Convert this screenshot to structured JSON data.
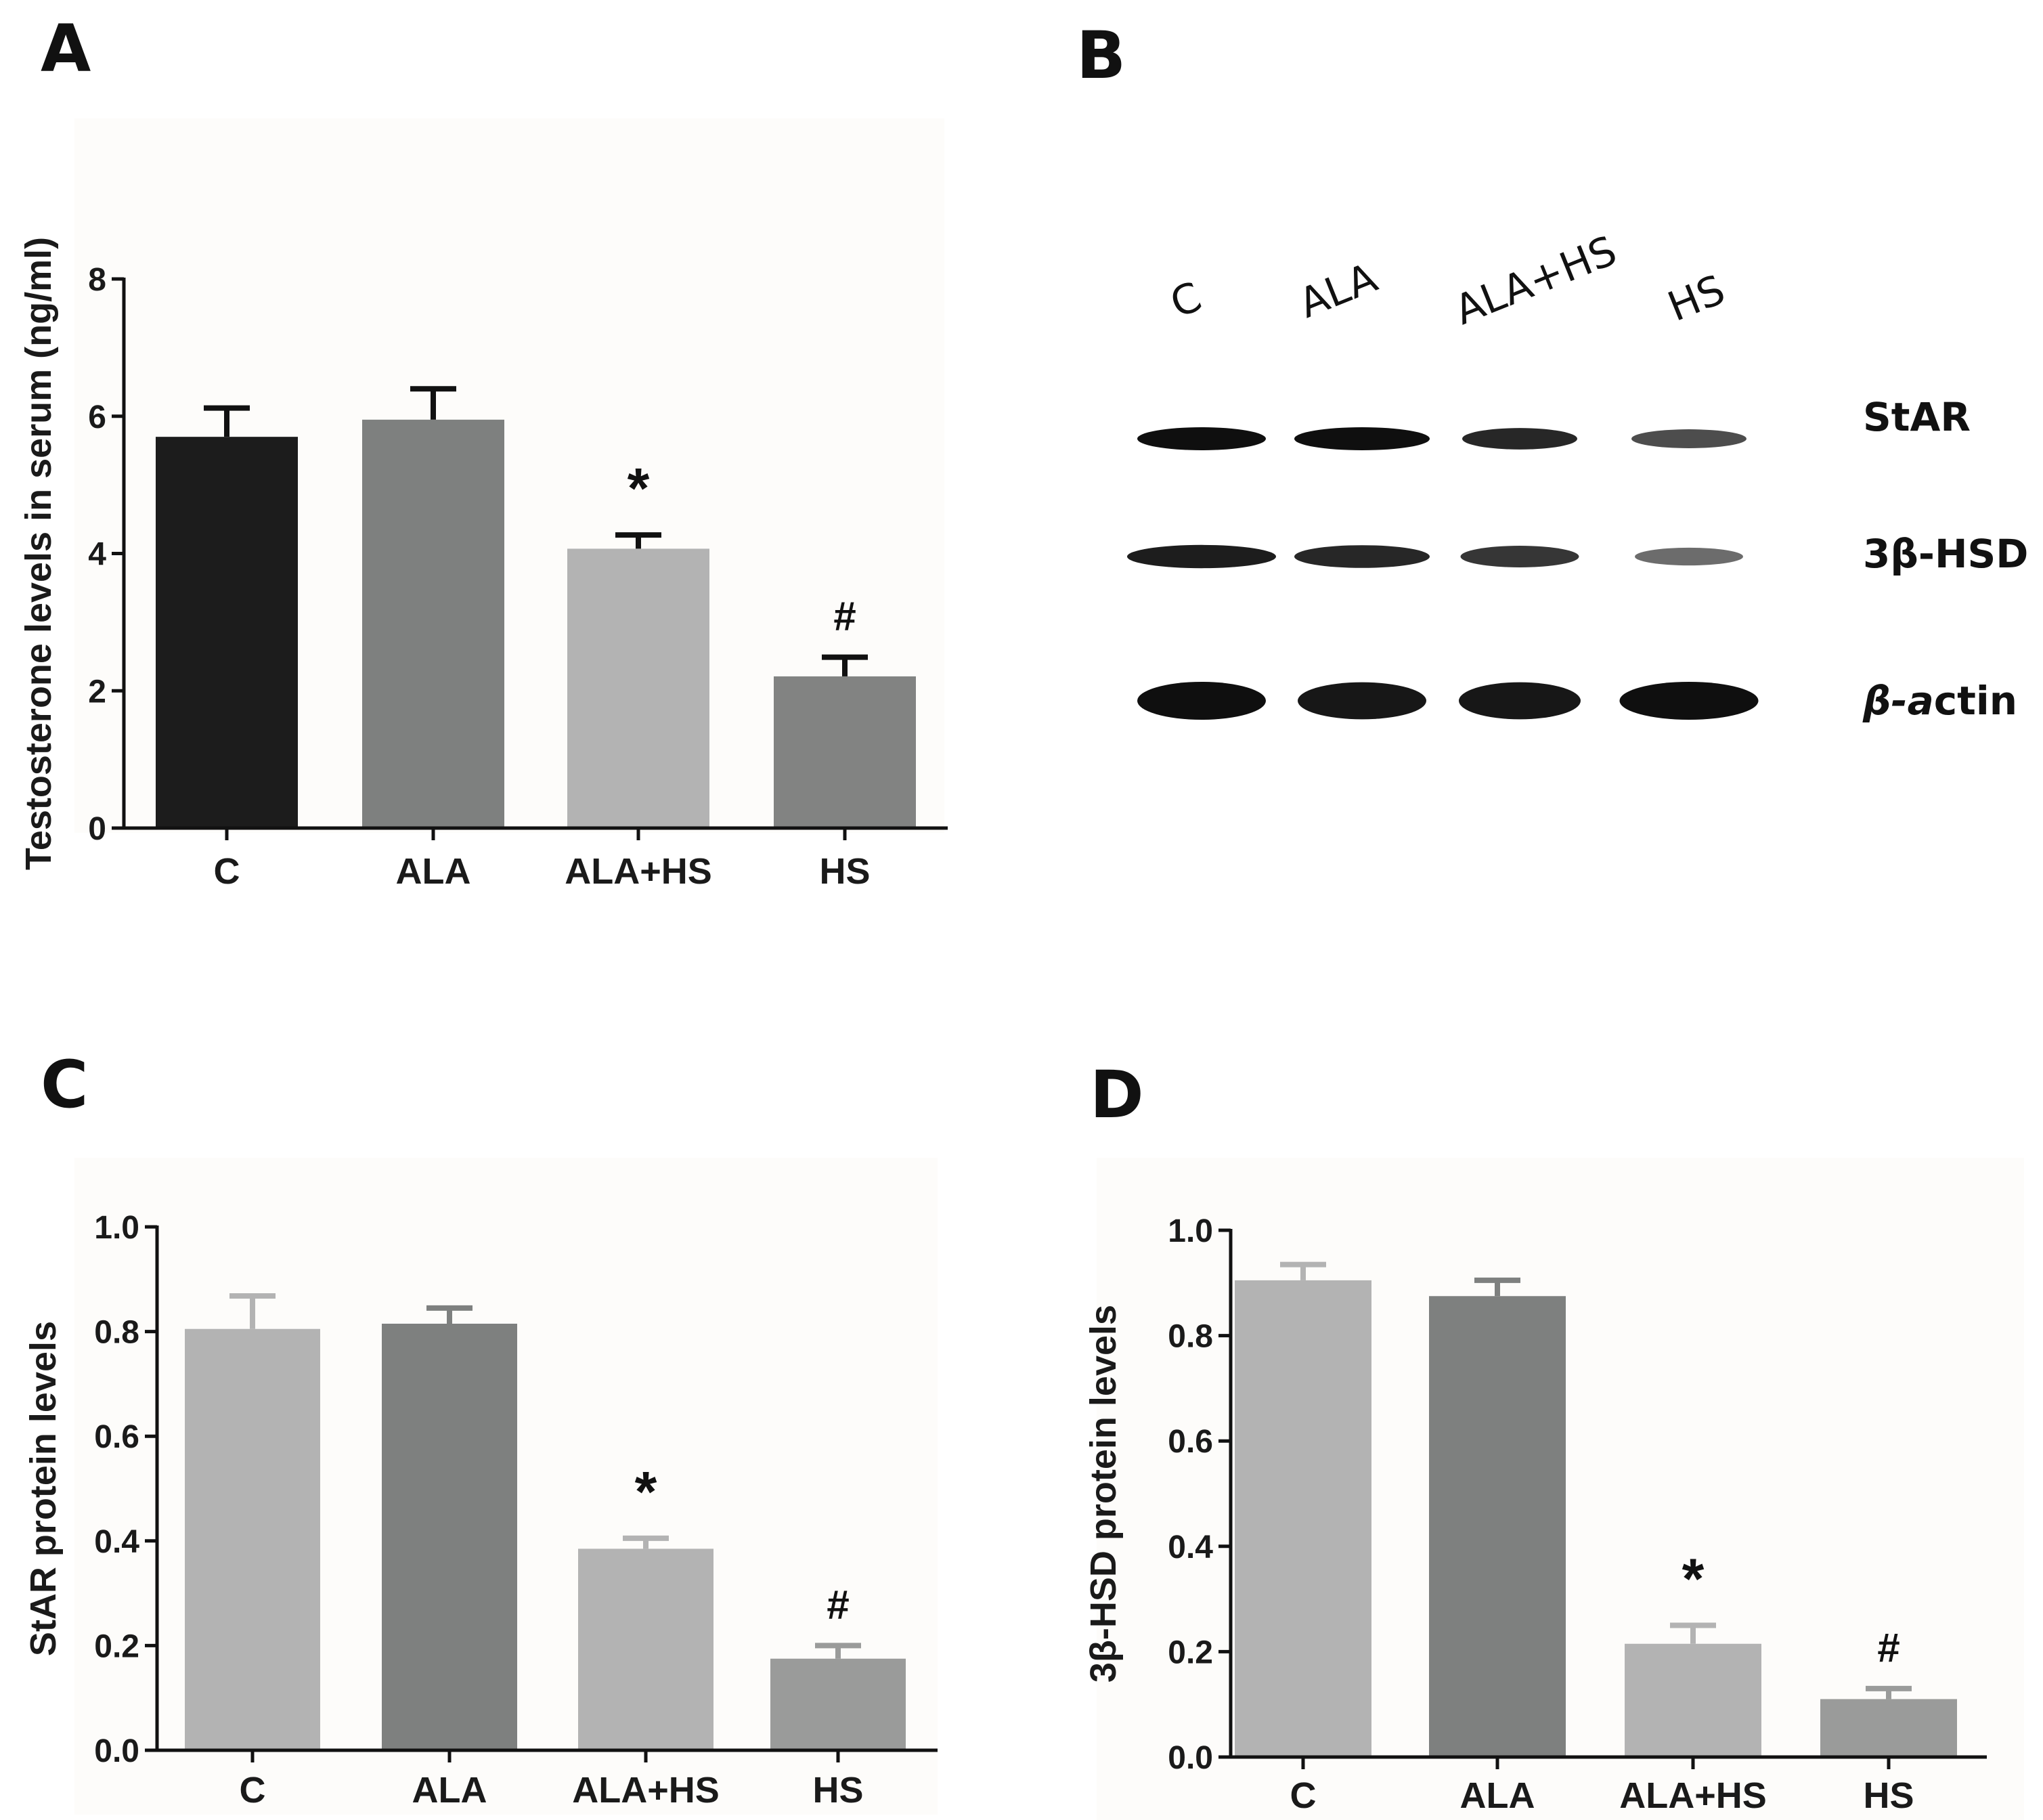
{
  "panels": {
    "a": "A",
    "b": "B",
    "c": "C",
    "d": "D"
  },
  "colors": {
    "C_A": "#1c1c1c",
    "ALA": "#7e807f",
    "ALA_HS": "#b3b3b3",
    "HS": "#828382",
    "light": "#b3b3b3",
    "dark": "#7e807f",
    "hs_cd": "#9a9b9a",
    "band": "#0f0f0f"
  },
  "chart_data": [
    {
      "id": "A",
      "type": "bar",
      "title": "",
      "xlabel": "",
      "ylabel": "Testosterone levels in serum (ng/ml)",
      "categories": [
        "C",
        "ALA",
        "ALA+HS",
        "HS"
      ],
      "values": [
        5.7,
        5.95,
        4.07,
        2.21
      ],
      "errors": [
        0.42,
        0.45,
        0.2,
        0.28
      ],
      "ylim": [
        0,
        8
      ],
      "yticks": [
        0,
        2,
        4,
        6,
        8
      ],
      "ytick_labels": [
        "0",
        "2",
        "4",
        "6",
        "8"
      ],
      "annotations": [
        "",
        "",
        "*",
        "#"
      ],
      "bar_colors": [
        "#1c1c1c",
        "#7e807f",
        "#b3b3b3",
        "#828382"
      ]
    },
    {
      "id": "C",
      "type": "bar",
      "title": "",
      "xlabel": "",
      "ylabel": "StAR protein levels",
      "categories": [
        "C",
        "ALA",
        "ALA+HS",
        "HS"
      ],
      "values": [
        0.805,
        0.815,
        0.385,
        0.175
      ],
      "errors": [
        0.063,
        0.03,
        0.02,
        0.025
      ],
      "ylim": [
        0,
        1.0
      ],
      "yticks": [
        0,
        0.2,
        0.4,
        0.6,
        0.8,
        1.0
      ],
      "ytick_labels": [
        "0.0",
        "0.2",
        "0.4",
        "0.6",
        "0.8",
        "1.0"
      ],
      "annotations": [
        "",
        "",
        "*",
        "#"
      ],
      "bar_colors": [
        "#b3b3b3",
        "#7e807f",
        "#b3b3b3",
        "#9a9b9a"
      ]
    },
    {
      "id": "D",
      "type": "bar",
      "title": "",
      "xlabel": "",
      "ylabel": "3β-HSD protein levels",
      "categories": [
        "C",
        "ALA",
        "ALA+HS",
        "HS"
      ],
      "values": [
        0.905,
        0.875,
        0.215,
        0.11
      ],
      "errors": [
        0.03,
        0.03,
        0.035,
        0.02
      ],
      "ylim": [
        0,
        1.0
      ],
      "yticks": [
        0,
        0.2,
        0.4,
        0.6,
        0.8,
        1.0
      ],
      "ytick_labels": [
        "0.0",
        "0.2",
        "0.4",
        "0.6",
        "0.8",
        "1.0"
      ],
      "annotations": [
        "",
        "",
        "*",
        "#"
      ],
      "bar_colors": [
        "#b3b3b3",
        "#7e807f",
        "#b3b3b3",
        "#9a9b9a"
      ]
    }
  ],
  "blot": {
    "lanes": [
      "C",
      "ALA",
      "ALA+HS",
      "HS"
    ],
    "rows": [
      {
        "label": "StAR",
        "intensity": [
          1.0,
          1.0,
          0.85,
          0.6
        ]
      },
      {
        "label": "3β-HSD",
        "intensity": [
          0.9,
          0.85,
          0.75,
          0.4
        ]
      },
      {
        "label_prefix": "β-a",
        "label_suffix": "ctin",
        "intensity": [
          1.0,
          0.95,
          0.95,
          1.0
        ]
      }
    ]
  }
}
